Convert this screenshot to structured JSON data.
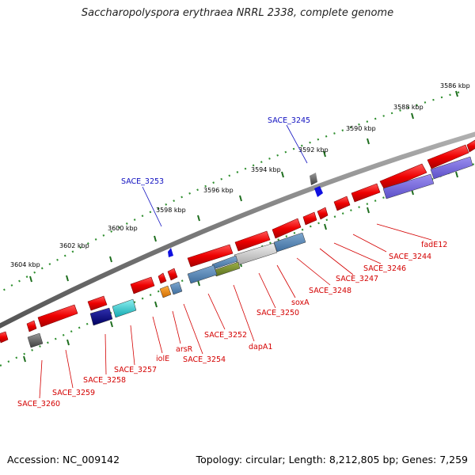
{
  "header": {
    "title": "Saccharopolyspora erythraea NRRL 2338, complete genome"
  },
  "footer": {
    "accession": "Accession: NC_009142",
    "topology": "Topology: circular; Length: 8,212,805 bp; Genes: 7,259"
  },
  "scale": {
    "ticks": [
      "3586 kbp",
      "3588 kbp",
      "3590 kbp",
      "3592 kbp",
      "3594 kbp",
      "3596 kbp",
      "3598 kbp",
      "3600 kbp",
      "3602 kbp",
      "3604 kbp"
    ]
  },
  "genes": {
    "outer_labels": [
      "SACE_3245",
      "SACE_3253"
    ],
    "inner_labels": [
      "fadE12",
      "SACE_3244",
      "SACE_3246",
      "SACE_3247",
      "SACE_3248",
      "soxA",
      "SACE_3250",
      "dapA1",
      "SACE_3252",
      "SACE_3254",
      "arsR",
      "iolE",
      "SACE_3257",
      "SACE_3258",
      "SACE_3259",
      "SACE_3260"
    ]
  },
  "colors": {
    "gene": "#e8000b",
    "backbone": "#7a7a7a",
    "tick": "#228b22",
    "label_red": "#d40000",
    "label_blue": "#1010c0"
  }
}
